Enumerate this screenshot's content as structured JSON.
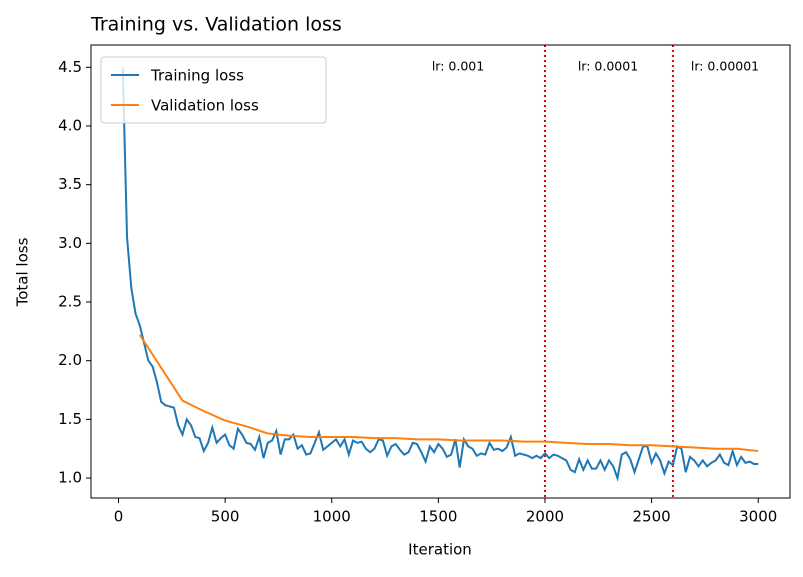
{
  "chart_data": {
    "type": "line",
    "title": "Training vs. Validation loss",
    "xlabel": "Iteration",
    "ylabel": "Total loss",
    "xlim": [
      -129,
      3149
    ],
    "ylim": [
      0.83,
      4.69
    ],
    "xticks": [
      0,
      500,
      1000,
      1500,
      2000,
      2500,
      3000
    ],
    "yticks": [
      {
        "value": 1,
        "label": "1.0"
      },
      1.5,
      {
        "value": 2,
        "label": "2.0"
      },
      2.5,
      {
        "value": 3,
        "label": "3.0"
      },
      3.5,
      {
        "value": 4,
        "label": "4.0"
      },
      4.5
    ],
    "grid": false,
    "legend": "upper left",
    "series": [
      {
        "name": "Training loss",
        "color": "#1f77b4",
        "x": [
          20,
          40,
          60,
          80,
          100,
          120,
          140,
          160,
          180,
          200,
          220,
          240,
          260,
          280,
          300,
          320,
          340,
          360,
          380,
          400,
          420,
          440,
          460,
          480,
          500,
          520,
          540,
          560,
          580,
          600,
          620,
          640,
          660,
          680,
          700,
          720,
          740,
          760,
          780,
          800,
          820,
          840,
          860,
          880,
          900,
          920,
          940,
          960,
          980,
          1000,
          1020,
          1040,
          1060,
          1080,
          1100,
          1120,
          1140,
          1160,
          1180,
          1200,
          1220,
          1240,
          1260,
          1280,
          1300,
          1320,
          1340,
          1360,
          1380,
          1400,
          1420,
          1440,
          1460,
          1480,
          1500,
          1520,
          1540,
          1560,
          1580,
          1600,
          1620,
          1640,
          1660,
          1680,
          1700,
          1720,
          1740,
          1760,
          1780,
          1800,
          1820,
          1840,
          1860,
          1880,
          1900,
          1920,
          1940,
          1960,
          1980,
          2000,
          2020,
          2040,
          2060,
          2080,
          2100,
          2120,
          2140,
          2160,
          2180,
          2200,
          2220,
          2240,
          2260,
          2280,
          2300,
          2320,
          2340,
          2360,
          2380,
          2400,
          2420,
          2440,
          2460,
          2480,
          2500,
          2520,
          2540,
          2560,
          2580,
          2600,
          2620,
          2640,
          2660,
          2680,
          2700,
          2720,
          2740,
          2760,
          2780,
          2800,
          2820,
          2840,
          2860,
          2880,
          2900,
          2920,
          2940,
          2960,
          2980,
          3000
        ],
        "values": [
          4.5,
          3.05,
          2.62,
          2.4,
          2.3,
          2.15,
          2.0,
          1.95,
          1.82,
          1.65,
          1.62,
          1.61,
          1.6,
          1.45,
          1.37,
          1.5,
          1.45,
          1.35,
          1.34,
          1.23,
          1.3,
          1.43,
          1.3,
          1.34,
          1.37,
          1.28,
          1.25,
          1.42,
          1.37,
          1.3,
          1.29,
          1.24,
          1.35,
          1.17,
          1.3,
          1.32,
          1.4,
          1.2,
          1.33,
          1.33,
          1.37,
          1.25,
          1.28,
          1.2,
          1.21,
          1.3,
          1.39,
          1.24,
          1.27,
          1.3,
          1.33,
          1.27,
          1.33,
          1.2,
          1.32,
          1.3,
          1.31,
          1.25,
          1.22,
          1.25,
          1.33,
          1.32,
          1.19,
          1.27,
          1.29,
          1.24,
          1.2,
          1.22,
          1.3,
          1.29,
          1.22,
          1.14,
          1.27,
          1.22,
          1.29,
          1.25,
          1.18,
          1.2,
          1.33,
          1.09,
          1.33,
          1.27,
          1.25,
          1.19,
          1.21,
          1.2,
          1.3,
          1.24,
          1.25,
          1.23,
          1.26,
          1.35,
          1.19,
          1.21,
          1.2,
          1.19,
          1.17,
          1.19,
          1.17,
          1.21,
          1.17,
          1.2,
          1.19,
          1.17,
          1.15,
          1.07,
          1.05,
          1.16,
          1.07,
          1.15,
          1.08,
          1.08,
          1.15,
          1.07,
          1.15,
          1.1,
          1.0,
          1.2,
          1.22,
          1.16,
          1.05,
          1.16,
          1.27,
          1.27,
          1.13,
          1.21,
          1.15,
          1.04,
          1.14,
          1.11,
          1.27,
          1.25,
          1.05,
          1.18,
          1.15,
          1.1,
          1.15,
          1.1,
          1.13,
          1.15,
          1.2,
          1.13,
          1.11,
          1.23,
          1.11,
          1.18,
          1.13,
          1.14,
          1.12,
          1.12
        ]
      },
      {
        "name": "Validation loss",
        "color": "#ff7f0e",
        "x": [
          100,
          200,
          300,
          400,
          500,
          600,
          700,
          800,
          900,
          1000,
          1100,
          1200,
          1300,
          1400,
          1500,
          1600,
          1700,
          1800,
          1900,
          2000,
          2100,
          2200,
          2300,
          2400,
          2500,
          2600,
          2700,
          2800,
          2900,
          3000
        ],
        "values": [
          2.22,
          1.94,
          1.66,
          1.57,
          1.49,
          1.44,
          1.38,
          1.36,
          1.35,
          1.35,
          1.35,
          1.34,
          1.34,
          1.33,
          1.33,
          1.32,
          1.32,
          1.32,
          1.31,
          1.31,
          1.3,
          1.29,
          1.29,
          1.28,
          1.28,
          1.27,
          1.26,
          1.25,
          1.25,
          1.23
        ]
      }
    ],
    "vlines": {
      "x": [
        2000,
        2600
      ],
      "color": "#e00000"
    },
    "annotations": [
      "lr: 0.001",
      "lr: 0.0001",
      "lr: 0.00001"
    ]
  }
}
